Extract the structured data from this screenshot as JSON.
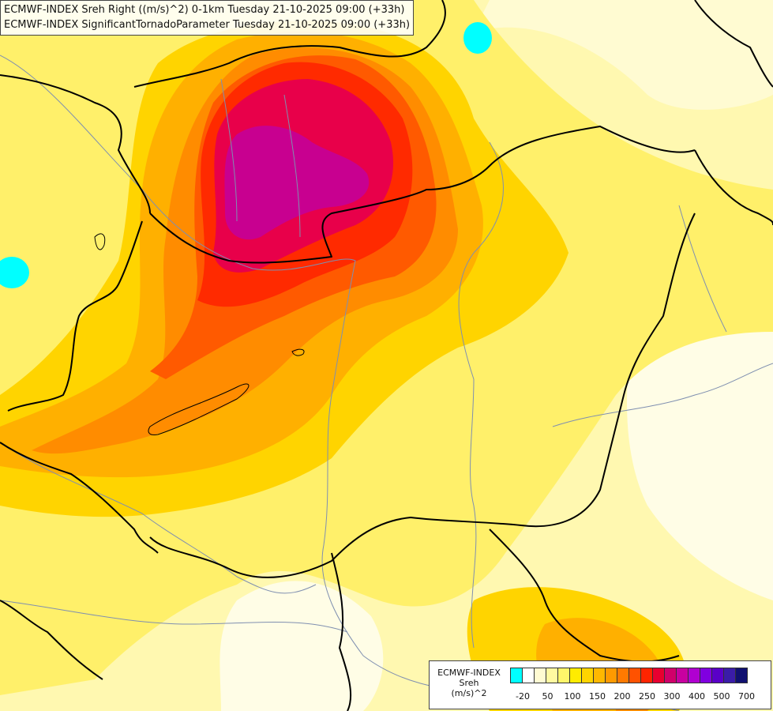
{
  "title": {
    "line1": "ECMWF-INDEX Sreh Right ((m/s)^2) 0-1km Tuesday 21-10-2025 09:00 (+33h)",
    "line2": "ECMWF-INDEX SignificantTornadoParameter Tuesday 21-10-2025 09:00 (+33h)"
  },
  "legend": {
    "model": "ECMWF-INDEX",
    "param": "Sreh",
    "unit": "(m/s)^2",
    "colors": [
      "#00ffff",
      "#ffffff",
      "#fffbd2",
      "#fff9a0",
      "#fff56a",
      "#ffec00",
      "#ffd400",
      "#ffb800",
      "#ff9a00",
      "#ff7a00",
      "#ff5200",
      "#ff2400",
      "#e80030",
      "#d0006a",
      "#c800a0",
      "#b000d0",
      "#8000e0",
      "#5a00c8",
      "#3a1ca8",
      "#101070"
    ],
    "ticks": [
      "-20",
      "50",
      "100",
      "150",
      "200",
      "250",
      "300",
      "400",
      "500",
      "700"
    ]
  },
  "map": {
    "fill_colors": {
      "base": "#fff8b0",
      "yellow": "#fff06a",
      "gold": "#ffd400",
      "orange": "#ffb000",
      "dark_orange": "#ff8c00",
      "red_orange": "#ff5a00",
      "red": "#ff2a00",
      "crimson": "#e8004a",
      "magenta": "#c80090",
      "pale": "#fffde6",
      "cyan": "#00ffff"
    },
    "border_color": "#000000",
    "river_color": "#7f8fb0"
  }
}
